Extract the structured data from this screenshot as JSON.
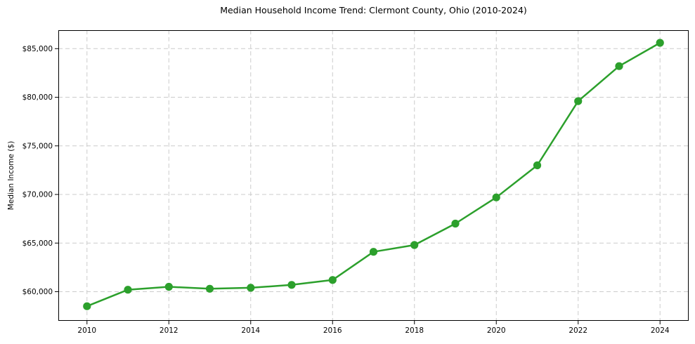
{
  "chart_data": {
    "type": "line",
    "title": "Median Household Income Trend: Clermont County, Ohio (2010-2024)",
    "xlabel": "",
    "ylabel": "Median Income ($)",
    "x": [
      2010,
      2011,
      2012,
      2013,
      2014,
      2015,
      2016,
      2017,
      2018,
      2019,
      2020,
      2021,
      2022,
      2023,
      2024
    ],
    "values": [
      58500,
      60200,
      60500,
      60300,
      60400,
      60700,
      61200,
      64100,
      64800,
      67000,
      69700,
      73000,
      79600,
      83200,
      85600
    ],
    "xticks": [
      2010,
      2012,
      2014,
      2016,
      2018,
      2020,
      2022,
      2024
    ],
    "xtick_labels": [
      "2010",
      "2012",
      "2014",
      "2016",
      "2018",
      "2020",
      "2022",
      "2024"
    ],
    "yticks": [
      60000,
      65000,
      70000,
      75000,
      80000,
      85000
    ],
    "ytick_labels": [
      "$60,000",
      "$65,000",
      "$70,000",
      "$75,000",
      "$80,000",
      "$85,000"
    ],
    "xlim": [
      2009.3,
      2024.7
    ],
    "ylim": [
      57000,
      86900
    ],
    "grid": true,
    "grid_style": "dashed",
    "legend_position": "none",
    "line_color": "#2ca02c",
    "grid_color": "#cccccc",
    "axis_color": "#000000",
    "background_color": "#ffffff"
  }
}
